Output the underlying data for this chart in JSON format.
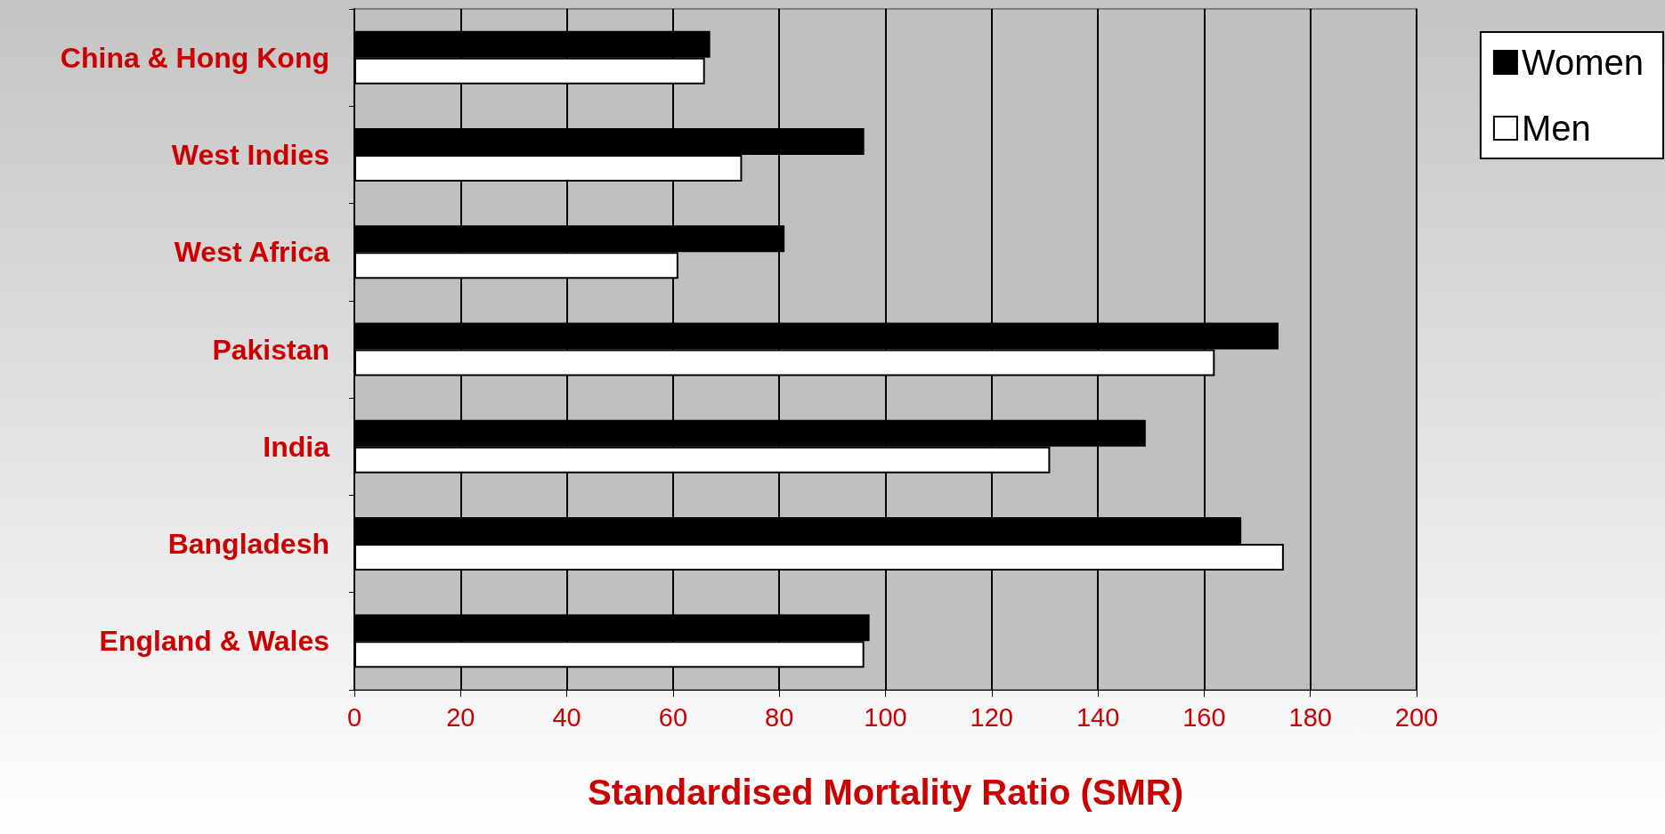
{
  "chart_data": {
    "type": "bar",
    "orientation": "horizontal",
    "xlabel": "Standardised Mortality Ratio (SMR)",
    "categories": [
      "China & Hong Kong",
      "West Indies",
      "West Africa",
      "Pakistan",
      "India",
      "Bangladesh",
      "England & Wales"
    ],
    "series": [
      {
        "name": "Women",
        "color": "#000000",
        "values": [
          67,
          96,
          81,
          174,
          149,
          167,
          97
        ]
      },
      {
        "name": "Men",
        "color": "#ffffff",
        "values": [
          66,
          73,
          61,
          162,
          131,
          175,
          96
        ]
      }
    ],
    "xlim": [
      0,
      200
    ],
    "xticks": [
      0,
      20,
      40,
      60,
      80,
      100,
      120,
      140,
      160,
      180,
      200
    ],
    "grid": "x",
    "legend": "top right"
  }
}
